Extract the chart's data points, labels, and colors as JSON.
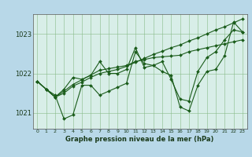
{
  "title": "Graphe pression niveau de la mer (hPa)",
  "bg_color": "#b8d8e8",
  "plot_bg_color": "#d8eee8",
  "line_color": "#1a5c1a",
  "grid_color": "#88bb88",
  "xlim": [
    -0.5,
    23.5
  ],
  "ylim": [
    1020.6,
    1023.5
  ],
  "yticks": [
    1021,
    1022,
    1023
  ],
  "xticks": [
    0,
    1,
    2,
    3,
    4,
    5,
    6,
    7,
    8,
    9,
    10,
    11,
    12,
    13,
    14,
    15,
    16,
    17,
    18,
    19,
    20,
    21,
    22,
    23
  ],
  "series": [
    [
      1021.8,
      1021.6,
      1021.45,
      1020.85,
      1020.95,
      1021.7,
      1021.7,
      1021.45,
      1021.55,
      1021.65,
      1021.75,
      1022.55,
      1022.25,
      1022.2,
      1022.05,
      1021.95,
      1021.15,
      1021.05,
      1021.7,
      1022.05,
      1022.1,
      1022.45,
      1023.3,
      1023.05
    ],
    [
      1021.8,
      1021.6,
      1021.4,
      1021.6,
      1021.9,
      1021.85,
      1021.95,
      1022.3,
      1022.0,
      1022.0,
      1022.1,
      1022.65,
      1022.15,
      1022.2,
      1022.3,
      1021.85,
      1021.35,
      1021.3,
      1022.05,
      1022.4,
      1022.55,
      1022.85,
      1023.1,
      1023.05
    ],
    [
      1021.8,
      1021.6,
      1021.4,
      1021.55,
      1021.72,
      1021.84,
      1021.96,
      1022.08,
      1022.12,
      1022.16,
      1022.2,
      1022.3,
      1022.35,
      1022.4,
      1022.42,
      1022.44,
      1022.46,
      1022.55,
      1022.6,
      1022.65,
      1022.7,
      1022.75,
      1022.8,
      1022.85
    ],
    [
      1021.8,
      1021.6,
      1021.4,
      1021.5,
      1021.68,
      1021.78,
      1021.9,
      1022.0,
      1022.05,
      1022.1,
      1022.18,
      1022.28,
      1022.38,
      1022.48,
      1022.56,
      1022.65,
      1022.72,
      1022.82,
      1022.9,
      1023.0,
      1023.1,
      1023.18,
      1023.28,
      1023.38
    ]
  ]
}
